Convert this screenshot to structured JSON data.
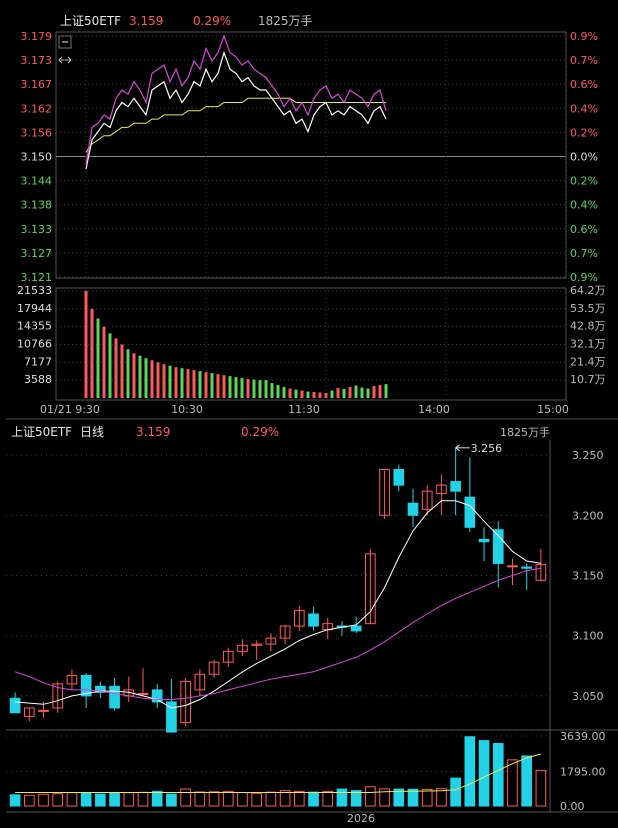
{
  "colors": {
    "up": "#ff5a5a",
    "down": "#22d3e8",
    "intraday_up_text": "#ff5a5a",
    "intraday_down_text": "#5bd75b",
    "price_line": "#ffffff",
    "avg_line": "#e8e85a",
    "index_line": "#d54ad5",
    "ma_short": "#ffffff",
    "ma_long": "#d54ad5",
    "grid": "#3a3a3a",
    "panel_border": "#555555",
    "axis_text": "#bbbbbb",
    "volume_intraday_up": "#ff5a5a",
    "volume_intraday_down": "#5bd75b"
  },
  "intraday": {
    "header": {
      "name": "上证50ETF",
      "price": "3.159",
      "change": "0.29%",
      "volume": "1825万手"
    },
    "icons": [
      "minus-icon",
      "expand-horizontal-icon"
    ],
    "price_labels": [
      "3.179",
      "3.173",
      "3.167",
      "3.162",
      "3.156",
      "3.150",
      "3.144",
      "3.138",
      "3.133",
      "3.127",
      "3.121"
    ],
    "pct_labels": [
      "0.9%",
      "0.7%",
      "0.6%",
      "0.4%",
      "0.2%",
      "0.0%",
      "0.2%",
      "0.4%",
      "0.6%",
      "0.7%",
      "0.9%"
    ],
    "volume_labels": [
      "21533",
      "17944",
      "14355",
      "10766",
      "7177",
      "3588"
    ],
    "volume_right_labels": [
      "64.2万",
      "53.5万",
      "42.8万",
      "32.1万",
      "21.4万",
      "10.7万"
    ],
    "time_labels": [
      "01/21 9:30",
      "10:30",
      "11:30",
      "14:00",
      "15:00"
    ]
  },
  "daily": {
    "header": {
      "name": "上证50ETF",
      "period": "日线",
      "price": "3.159",
      "change": "0.29%",
      "volume": "1825万手"
    },
    "price_labels": [
      "3.250",
      "3.200",
      "3.150",
      "3.100",
      "3.050"
    ],
    "volume_labels": [
      "3639.00",
      "1795.00",
      "0.00"
    ],
    "max_annotation": "3.256",
    "year_label": "2026"
  },
  "chart_data": [
    {
      "type": "line",
      "title": "上证50ETF 分时",
      "ylim": [
        3.121,
        3.179
      ],
      "prev_close": 3.15,
      "x": [
        "9:30",
        "9:33",
        "9:36",
        "9:39",
        "9:42",
        "9:45",
        "9:48",
        "9:51",
        "9:54",
        "9:57",
        "10:00",
        "10:03",
        "10:06",
        "10:09",
        "10:12",
        "10:15",
        "10:18",
        "10:21",
        "10:24",
        "10:27",
        "10:30",
        "10:33",
        "10:36",
        "10:39",
        "10:42",
        "10:45",
        "10:48",
        "10:51",
        "10:54",
        "10:57",
        "11:00",
        "11:03",
        "11:06",
        "11:09",
        "11:12",
        "11:15",
        "11:18",
        "11:21",
        "11:24",
        "11:27",
        "11:30",
        "13:03",
        "13:06",
        "13:09",
        "13:12",
        "13:15",
        "13:18",
        "13:21",
        "13:24",
        "13:27",
        "13:30"
      ],
      "series": [
        {
          "name": "price",
          "values": [
            3.147,
            3.154,
            3.156,
            3.158,
            3.157,
            3.161,
            3.163,
            3.162,
            3.164,
            3.162,
            3.16,
            3.166,
            3.167,
            3.168,
            3.164,
            3.166,
            3.163,
            3.165,
            3.168,
            3.167,
            3.171,
            3.168,
            3.17,
            3.175,
            3.171,
            3.17,
            3.168,
            3.169,
            3.167,
            3.166,
            3.166,
            3.164,
            3.162,
            3.16,
            3.161,
            3.158,
            3.159,
            3.156,
            3.16,
            3.162,
            3.163,
            3.16,
            3.161,
            3.16,
            3.162,
            3.161,
            3.16,
            3.158,
            3.161,
            3.162,
            3.159
          ]
        },
        {
          "name": "avg",
          "values": [
            3.151,
            3.153,
            3.154,
            3.155,
            3.155,
            3.156,
            3.157,
            3.157,
            3.158,
            3.158,
            3.158,
            3.159,
            3.159,
            3.16,
            3.16,
            3.16,
            3.16,
            3.161,
            3.161,
            3.161,
            3.162,
            3.162,
            3.162,
            3.163,
            3.163,
            3.163,
            3.163,
            3.164,
            3.164,
            3.164,
            3.164,
            3.164,
            3.164,
            3.164,
            3.164,
            3.163,
            3.163,
            3.163,
            3.163,
            3.163,
            3.163,
            3.163,
            3.163,
            3.163,
            3.163,
            3.163,
            3.163,
            3.163,
            3.163,
            3.163,
            3.163
          ]
        },
        {
          "name": "index",
          "values": [
            3.148,
            3.157,
            3.158,
            3.16,
            3.159,
            3.164,
            3.166,
            3.165,
            3.168,
            3.166,
            3.163,
            3.17,
            3.171,
            3.172,
            3.168,
            3.171,
            3.167,
            3.169,
            3.173,
            3.171,
            3.176,
            3.173,
            3.175,
            3.179,
            3.175,
            3.174,
            3.172,
            3.173,
            3.171,
            3.17,
            3.169,
            3.167,
            3.165,
            3.162,
            3.164,
            3.161,
            3.163,
            3.16,
            3.164,
            3.166,
            3.167,
            3.164,
            3.165,
            3.163,
            3.166,
            3.165,
            3.164,
            3.162,
            3.165,
            3.166,
            3.161
          ]
        }
      ],
      "volume": [
        21533,
        17944,
        16000,
        14355,
        13000,
        12000,
        10766,
        9800,
        9000,
        8500,
        8000,
        7600,
        7177,
        6800,
        6500,
        6200,
        6000,
        5800,
        5600,
        5400,
        5200,
        5000,
        4800,
        4600,
        4400,
        4200,
        4000,
        3800,
        3700,
        3600,
        3588,
        3000,
        2600,
        2200,
        1900,
        1700,
        1500,
        1300,
        1200,
        1100,
        1000,
        1500,
        2000,
        1800,
        2200,
        2500,
        2100,
        1900,
        2400,
        2600,
        2800
      ],
      "volume_up": [
        true,
        true,
        false,
        true,
        false,
        true,
        true,
        false,
        true,
        false,
        false,
        true,
        true,
        true,
        false,
        true,
        false,
        true,
        true,
        false,
        true,
        false,
        true,
        true,
        false,
        false,
        false,
        true,
        false,
        false,
        false,
        false,
        false,
        false,
        true,
        false,
        true,
        false,
        true,
        true,
        true,
        false,
        true,
        false,
        true,
        false,
        false,
        false,
        true,
        true,
        false
      ]
    },
    {
      "type": "candlestick",
      "title": "上证50ETF 日线",
      "ylim": [
        3.03,
        3.26
      ],
      "candles": [
        {
          "o": 3.048,
          "h": 3.053,
          "l": 3.036,
          "c": 3.036
        },
        {
          "o": 3.033,
          "h": 3.04,
          "l": 3.029,
          "c": 3.04
        },
        {
          "o": 3.038,
          "h": 3.045,
          "l": 3.032,
          "c": 3.038
        },
        {
          "o": 3.04,
          "h": 3.062,
          "l": 3.036,
          "c": 3.06
        },
        {
          "o": 3.06,
          "h": 3.072,
          "l": 3.055,
          "c": 3.067
        },
        {
          "o": 3.067,
          "h": 3.069,
          "l": 3.04,
          "c": 3.05
        },
        {
          "o": 3.058,
          "h": 3.062,
          "l": 3.048,
          "c": 3.053
        },
        {
          "o": 3.058,
          "h": 3.065,
          "l": 3.038,
          "c": 3.04
        },
        {
          "o": 3.05,
          "h": 3.066,
          "l": 3.045,
          "c": 3.055
        },
        {
          "o": 3.052,
          "h": 3.073,
          "l": 3.05,
          "c": 3.052
        },
        {
          "o": 3.055,
          "h": 3.06,
          "l": 3.04,
          "c": 3.045
        },
        {
          "o": 3.045,
          "h": 3.064,
          "l": 3.02,
          "c": 3.02
        },
        {
          "o": 3.028,
          "h": 3.065,
          "l": 3.025,
          "c": 3.062
        },
        {
          "o": 3.055,
          "h": 3.072,
          "l": 3.05,
          "c": 3.068
        },
        {
          "o": 3.068,
          "h": 3.08,
          "l": 3.065,
          "c": 3.078
        },
        {
          "o": 3.078,
          "h": 3.09,
          "l": 3.074,
          "c": 3.087
        },
        {
          "o": 3.087,
          "h": 3.097,
          "l": 3.083,
          "c": 3.092
        },
        {
          "o": 3.092,
          "h": 3.096,
          "l": 3.08,
          "c": 3.093
        },
        {
          "o": 3.093,
          "h": 3.102,
          "l": 3.087,
          "c": 3.098
        },
        {
          "o": 3.098,
          "h": 3.109,
          "l": 3.093,
          "c": 3.108
        },
        {
          "o": 3.108,
          "h": 3.125,
          "l": 3.104,
          "c": 3.121
        },
        {
          "o": 3.118,
          "h": 3.124,
          "l": 3.104,
          "c": 3.108
        },
        {
          "o": 3.105,
          "h": 3.115,
          "l": 3.097,
          "c": 3.11
        },
        {
          "o": 3.108,
          "h": 3.112,
          "l": 3.1,
          "c": 3.107
        },
        {
          "o": 3.108,
          "h": 3.116,
          "l": 3.102,
          "c": 3.104
        },
        {
          "o": 3.11,
          "h": 3.172,
          "l": 3.11,
          "c": 3.168
        },
        {
          "o": 3.2,
          "h": 3.237,
          "l": 3.197,
          "c": 3.238
        },
        {
          "o": 3.238,
          "h": 3.242,
          "l": 3.22,
          "c": 3.225
        },
        {
          "o": 3.21,
          "h": 3.222,
          "l": 3.19,
          "c": 3.2
        },
        {
          "o": 3.205,
          "h": 3.225,
          "l": 3.2,
          "c": 3.22
        },
        {
          "o": 3.218,
          "h": 3.234,
          "l": 3.2,
          "c": 3.225
        },
        {
          "o": 3.228,
          "h": 3.256,
          "l": 3.2,
          "c": 3.22
        },
        {
          "o": 3.215,
          "h": 3.248,
          "l": 3.186,
          "c": 3.19
        },
        {
          "o": 3.18,
          "h": 3.19,
          "l": 3.162,
          "c": 3.178
        },
        {
          "o": 3.188,
          "h": 3.195,
          "l": 3.14,
          "c": 3.16
        },
        {
          "o": 3.158,
          "h": 3.164,
          "l": 3.142,
          "c": 3.158
        },
        {
          "o": 3.157,
          "h": 3.16,
          "l": 3.138,
          "c": 3.156
        },
        {
          "o": 3.146,
          "h": 3.172,
          "l": 3.145,
          "c": 3.159
        }
      ],
      "ma_short": [
        3.045,
        3.044,
        3.043,
        3.046,
        3.05,
        3.052,
        3.054,
        3.054,
        3.053,
        3.05,
        3.047,
        3.04,
        3.042,
        3.047,
        3.054,
        3.062,
        3.07,
        3.077,
        3.083,
        3.089,
        3.096,
        3.101,
        3.105,
        3.107,
        3.109,
        3.12,
        3.14,
        3.165,
        3.187,
        3.202,
        3.212,
        3.212,
        3.208,
        3.195,
        3.183,
        3.17,
        3.162,
        3.16
      ],
      "ma_long": [
        3.07,
        3.066,
        3.061,
        3.057,
        3.055,
        3.055,
        3.054,
        3.052,
        3.05,
        3.048,
        3.047,
        3.047,
        3.048,
        3.05,
        3.052,
        3.055,
        3.058,
        3.061,
        3.064,
        3.066,
        3.068,
        3.07,
        3.074,
        3.078,
        3.082,
        3.088,
        3.095,
        3.103,
        3.111,
        3.118,
        3.125,
        3.131,
        3.136,
        3.141,
        3.146,
        3.15,
        3.154,
        3.156
      ],
      "volume": [
        580,
        560,
        610,
        640,
        690,
        700,
        620,
        700,
        690,
        710,
        760,
        620,
        880,
        730,
        740,
        760,
        700,
        660,
        720,
        800,
        760,
        720,
        760,
        880,
        800,
        1000,
        890,
        880,
        870,
        860,
        900,
        1450,
        3600,
        3400,
        3250,
        2400,
        2600,
        1850
      ],
      "volume_ma": [
        700,
        700,
        700,
        700,
        700,
        700,
        700,
        700,
        700,
        700,
        700,
        700,
        700,
        700,
        700,
        700,
        700,
        700,
        700,
        700,
        700,
        700,
        700,
        700,
        700,
        700,
        740,
        760,
        770,
        780,
        790,
        840,
        1150,
        1500,
        1850,
        2200,
        2500,
        2700
      ]
    }
  ]
}
